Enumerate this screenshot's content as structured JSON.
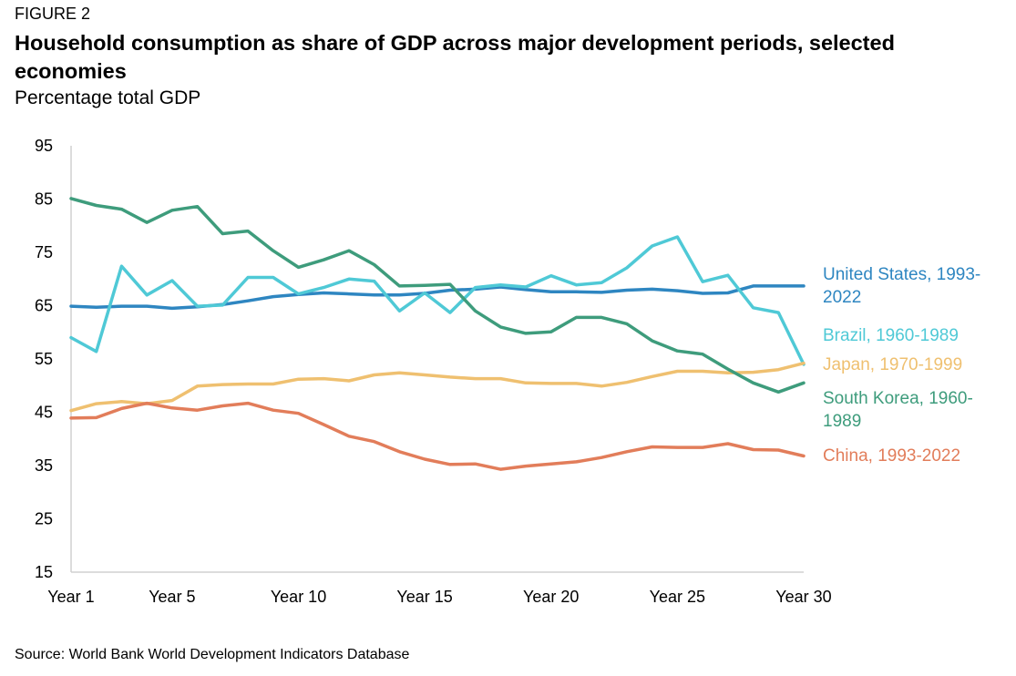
{
  "figure_label": "FIGURE 2",
  "title": "Household consumption as share of GDP across major development periods, selected economies",
  "subtitle": "Percentage total GDP",
  "source": "Source: World Bank World Development Indicators Database",
  "chart_data": {
    "type": "line",
    "title": "Household consumption as share of GDP across major development periods, selected economies",
    "ylabel": "Percentage total GDP",
    "xlabel": "",
    "ylim": [
      15,
      95
    ],
    "yticks": [
      95,
      85,
      75,
      65,
      55,
      45,
      35,
      25,
      15
    ],
    "xlim": [
      1,
      30
    ],
    "xticks": [
      {
        "value": 1,
        "label": "Year 1"
      },
      {
        "value": 5,
        "label": "Year 5"
      },
      {
        "value": 10,
        "label": "Year 10"
      },
      {
        "value": 15,
        "label": "Year 15"
      },
      {
        "value": 20,
        "label": "Year 20"
      },
      {
        "value": 25,
        "label": "Year 25"
      },
      {
        "value": 30,
        "label": "Year 30"
      }
    ],
    "grid": false,
    "legend": "right, labels at line ends",
    "x": [
      1,
      2,
      3,
      4,
      5,
      6,
      7,
      8,
      9,
      10,
      11,
      12,
      13,
      14,
      15,
      16,
      17,
      18,
      19,
      20,
      21,
      22,
      23,
      24,
      25,
      26,
      27,
      28,
      29,
      30
    ],
    "series": [
      {
        "name": "United States, 1993-2022",
        "label_lines": [
          "United States, 1993-",
          "2022"
        ],
        "color": "#2E86C1",
        "values": [
          64.9,
          64.7,
          64.9,
          64.9,
          64.5,
          64.8,
          65.2,
          65.9,
          66.7,
          67.1,
          67.4,
          67.2,
          67.0,
          67.0,
          67.3,
          67.9,
          68.1,
          68.5,
          68.0,
          67.6,
          67.6,
          67.5,
          67.9,
          68.1,
          67.8,
          67.3,
          67.4,
          68.7,
          68.7,
          68.7
        ]
      },
      {
        "name": "Brazil, 1960-1989",
        "label_lines": [
          "Brazil, 1960-1989"
        ],
        "color": "#4FC9D6",
        "values": [
          59.0,
          56.4,
          72.4,
          67.0,
          69.7,
          64.9,
          65.1,
          70.3,
          70.3,
          67.2,
          68.4,
          70.0,
          69.6,
          64.0,
          67.4,
          63.7,
          68.4,
          68.9,
          68.5,
          70.6,
          68.9,
          69.3,
          72.1,
          76.2,
          77.9,
          69.5,
          70.7,
          64.6,
          63.7,
          54.0
        ]
      },
      {
        "name": "Japan, 1970-1999",
        "label_lines": [
          "Japan, 1970-1999"
        ],
        "color": "#EFC070",
        "values": [
          45.3,
          46.6,
          47.0,
          46.6,
          47.2,
          49.9,
          50.2,
          50.3,
          50.3,
          51.2,
          51.3,
          50.9,
          52.0,
          52.4,
          52.0,
          51.6,
          51.3,
          51.3,
          50.5,
          50.4,
          50.4,
          49.9,
          50.6,
          51.7,
          52.7,
          52.7,
          52.4,
          52.5,
          53.0,
          54.2
        ]
      },
      {
        "name": "South Korea, 1960-1989",
        "label_lines": [
          "South Korea, 1960-",
          "1989"
        ],
        "color": "#3E9C7C",
        "values": [
          85.1,
          83.8,
          83.1,
          80.6,
          82.9,
          83.6,
          78.5,
          79.0,
          75.3,
          72.2,
          73.6,
          75.3,
          72.7,
          68.7,
          68.8,
          69.0,
          64.0,
          61.0,
          59.8,
          60.1,
          62.8,
          62.8,
          61.6,
          58.4,
          56.5,
          55.9,
          53.1,
          50.5,
          48.8,
          50.5
        ]
      },
      {
        "name": "China, 1993-2022",
        "label_lines": [
          "China, 1993-2022"
        ],
        "color": "#E27D5A",
        "values": [
          43.9,
          44.0,
          45.7,
          46.7,
          45.8,
          45.4,
          46.2,
          46.7,
          45.4,
          44.8,
          42.7,
          40.5,
          39.5,
          37.6,
          36.2,
          35.2,
          35.3,
          34.3,
          34.9,
          35.3,
          35.7,
          36.5,
          37.6,
          38.5,
          38.4,
          38.4,
          39.1,
          38.0,
          37.9,
          36.8
        ]
      }
    ]
  }
}
